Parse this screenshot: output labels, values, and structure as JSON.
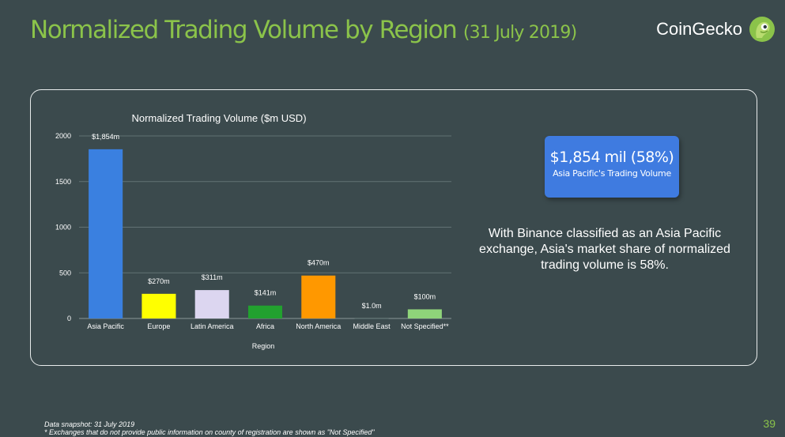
{
  "slide": {
    "title": "Normalized Trading Volume by Region",
    "title_date": "(31 July 2019)",
    "logo_text": "CoinGecko",
    "callout_value": "$1,854 mil (58%)",
    "callout_subtitle": "Asia Pacific's Trading Volume",
    "description": "With Binance classified as an Asia Pacific exchange, Asia's market share of normalized trading volume is 58%.",
    "footnote_1": "Data snapshot: 31 July 2019",
    "footnote_2": "* Exchanges that do not provide public information on county of registration are shown as \"Not Specified\"",
    "page_number": "39"
  },
  "colors": {
    "background": "#3b4a4d",
    "title": "#8bc34a",
    "callout": "#3f7be0"
  },
  "chart_data": {
    "type": "bar",
    "title": "Normalized Trading Volume ($m USD)",
    "xlabel": "Region",
    "ylabel": "",
    "categories": [
      "Asia Pacific",
      "Europe",
      "Latin America",
      "Africa",
      "North America",
      "Middle East",
      "Not Specified**"
    ],
    "values": [
      1854,
      270,
      311,
      141,
      470,
      1.0,
      100
    ],
    "data_labels": [
      "$1,854m",
      "$270m",
      "$311m",
      "$141m",
      "$470m",
      "$1.0m",
      "$100m"
    ],
    "bar_colors": [
      "#3a80e0",
      "#ffff00",
      "#dcd6f0",
      "#22a12f",
      "#ff9800",
      "#4a6a6a",
      "#8fd47a"
    ],
    "yticks": [
      0,
      500,
      1000,
      1500,
      2000
    ],
    "ylim": [
      0,
      2000
    ],
    "grid": true,
    "legend": "none"
  }
}
